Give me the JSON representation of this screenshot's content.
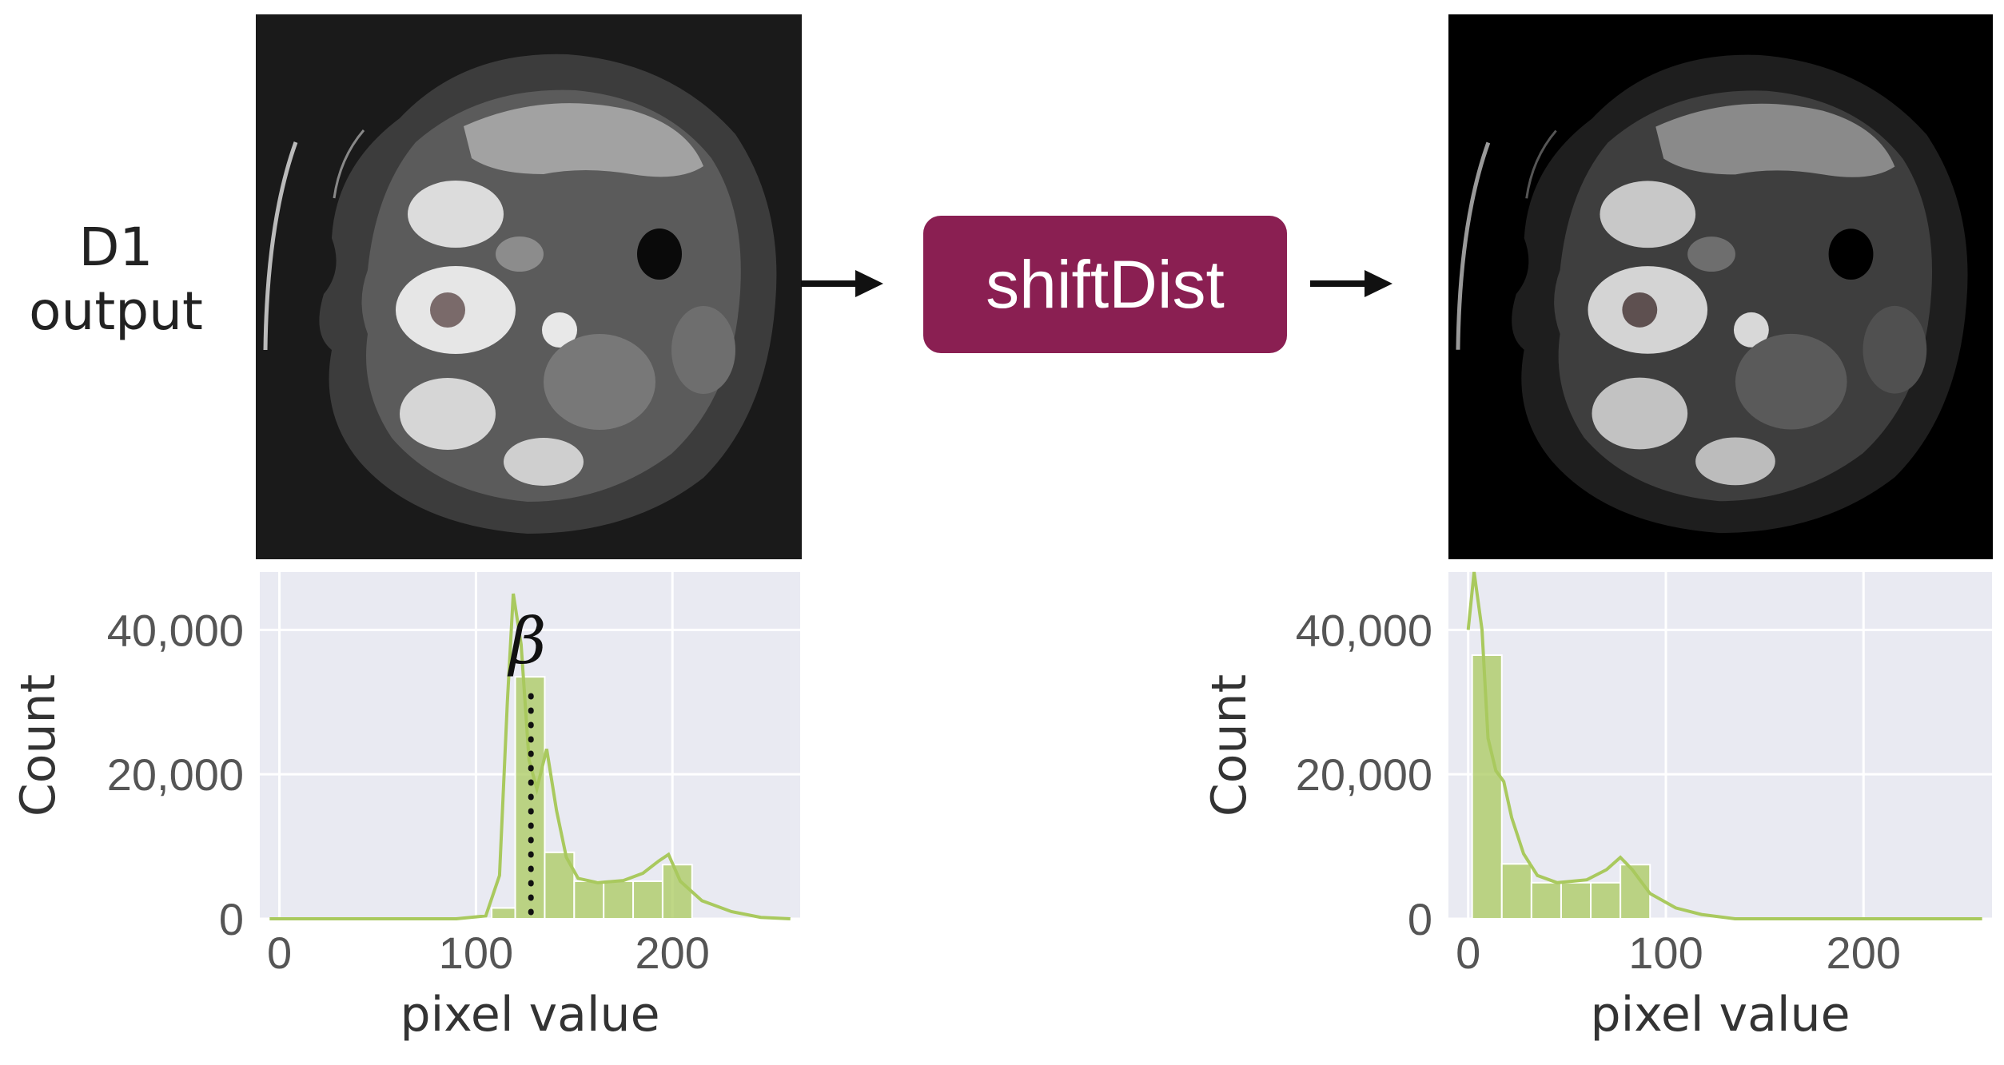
{
  "input_label": {
    "line1": "D1",
    "line2": "output"
  },
  "operation": {
    "label": "shiftDist",
    "color": "#8a1f52"
  },
  "arrow_color": "#111111",
  "hist_color": "#a9c95e",
  "hist_bg": "#e9eaf2",
  "beta_symbol": "β",
  "chart_data": [
    {
      "type": "bar",
      "xlabel": "pixel value",
      "ylabel": "Count",
      "xlim": [
        -10,
        265
      ],
      "ylim": [
        0,
        48000
      ],
      "x_ticks": [
        "0",
        "100",
        "200"
      ],
      "y_ticks": [
        "0",
        "20,000",
        "40,000"
      ],
      "bin_edges": [
        108,
        120,
        135,
        150,
        165,
        180,
        195,
        210
      ],
      "values": [
        1500,
        33500,
        9200,
        5200,
        5200,
        5200,
        7500
      ],
      "kde": [
        [
          -5,
          0
        ],
        [
          90,
          0
        ],
        [
          105,
          400
        ],
        [
          112,
          6000
        ],
        [
          116,
          30000
        ],
        [
          119,
          45000
        ],
        [
          123,
          38000
        ],
        [
          127,
          22000
        ],
        [
          131,
          18000
        ],
        [
          136,
          23500
        ],
        [
          141,
          15000
        ],
        [
          146,
          8500
        ],
        [
          152,
          5600
        ],
        [
          162,
          5000
        ],
        [
          175,
          5300
        ],
        [
          185,
          6300
        ],
        [
          193,
          8000
        ],
        [
          198,
          8900
        ],
        [
          204,
          5200
        ],
        [
          215,
          2500
        ],
        [
          230,
          1000
        ],
        [
          245,
          200
        ],
        [
          260,
          0
        ]
      ],
      "beta_x": 128
    },
    {
      "type": "bar",
      "xlabel": "pixel value",
      "ylabel": "Count",
      "xlim": [
        -10,
        265
      ],
      "ylim": [
        0,
        48000
      ],
      "x_ticks": [
        "0",
        "100",
        "200"
      ],
      "y_ticks": [
        "0",
        "20,000",
        "40,000"
      ],
      "bin_edges": [
        2,
        17,
        32,
        47,
        62,
        77,
        92
      ],
      "values": [
        36500,
        7600,
        5000,
        5000,
        5000,
        7500
      ],
      "kde": [
        [
          0,
          40000
        ],
        [
          3,
          48000
        ],
        [
          7,
          40000
        ],
        [
          10,
          25000
        ],
        [
          14,
          20500
        ],
        [
          18,
          19000
        ],
        [
          22,
          14000
        ],
        [
          28,
          9000
        ],
        [
          35,
          6000
        ],
        [
          45,
          5000
        ],
        [
          60,
          5400
        ],
        [
          70,
          6800
        ],
        [
          77,
          8500
        ],
        [
          83,
          6800
        ],
        [
          92,
          3500
        ],
        [
          105,
          1500
        ],
        [
          118,
          600
        ],
        [
          135,
          0
        ],
        [
          260,
          0
        ]
      ]
    }
  ]
}
